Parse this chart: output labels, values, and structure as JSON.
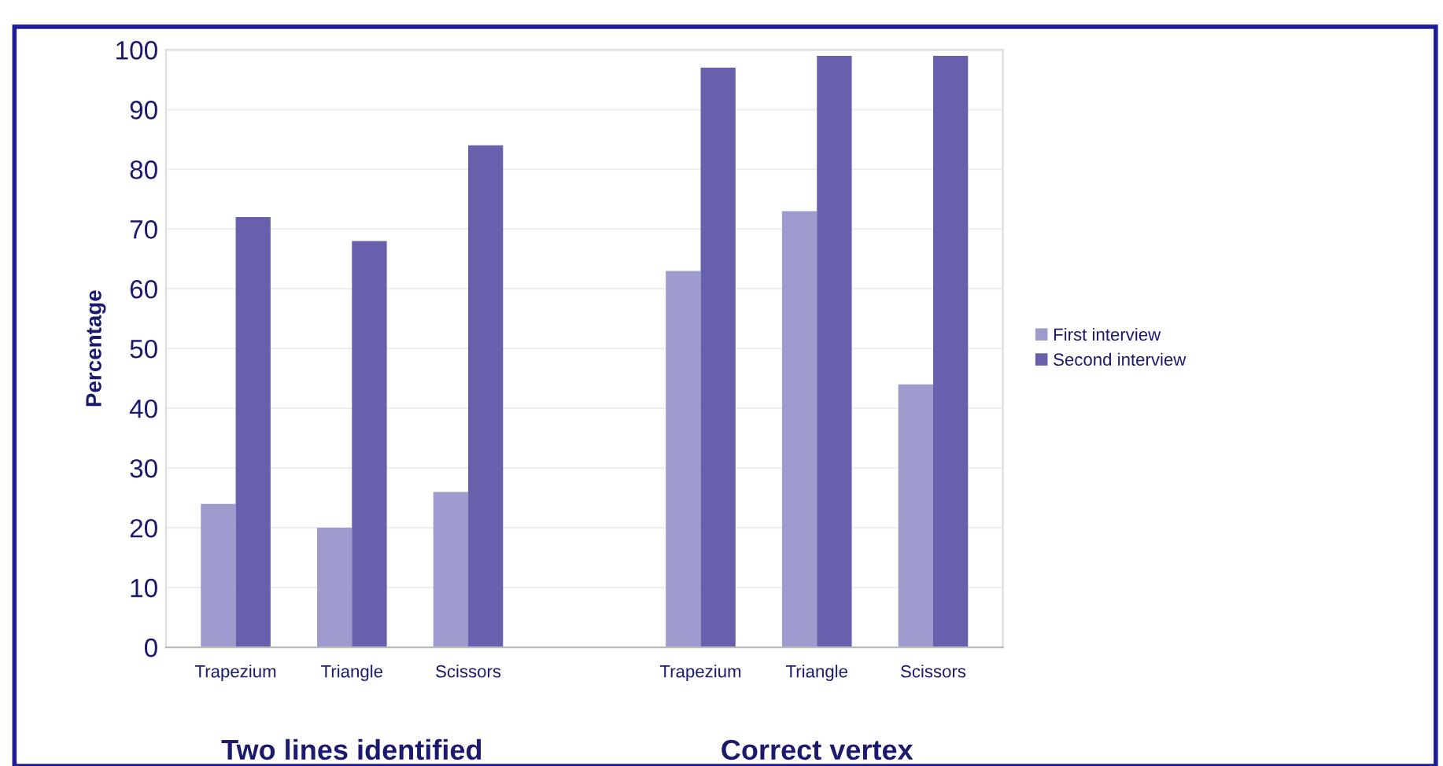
{
  "chart_data": {
    "type": "bar",
    "ylabel": "Percentage",
    "categories": [
      "Trapezium",
      "Triangle",
      "Scissors",
      null,
      "Trapezium",
      "Triangle",
      "Scissors"
    ],
    "series": [
      {
        "name": "First interview",
        "color": "#9e9cce",
        "values": [
          24,
          20,
          26,
          null,
          63,
          73,
          44
        ]
      },
      {
        "name": "Second interview",
        "color": "#6660ad",
        "values": [
          72,
          68,
          84,
          null,
          97,
          99,
          99
        ]
      }
    ],
    "ylim": [
      0,
      100
    ],
    "yticks": [
      0,
      10,
      20,
      30,
      40,
      50,
      60,
      70,
      80,
      90,
      100
    ],
    "grid": "y",
    "legend": "right",
    "annotations": [
      "Two lines identified",
      "Correct vertex"
    ]
  }
}
